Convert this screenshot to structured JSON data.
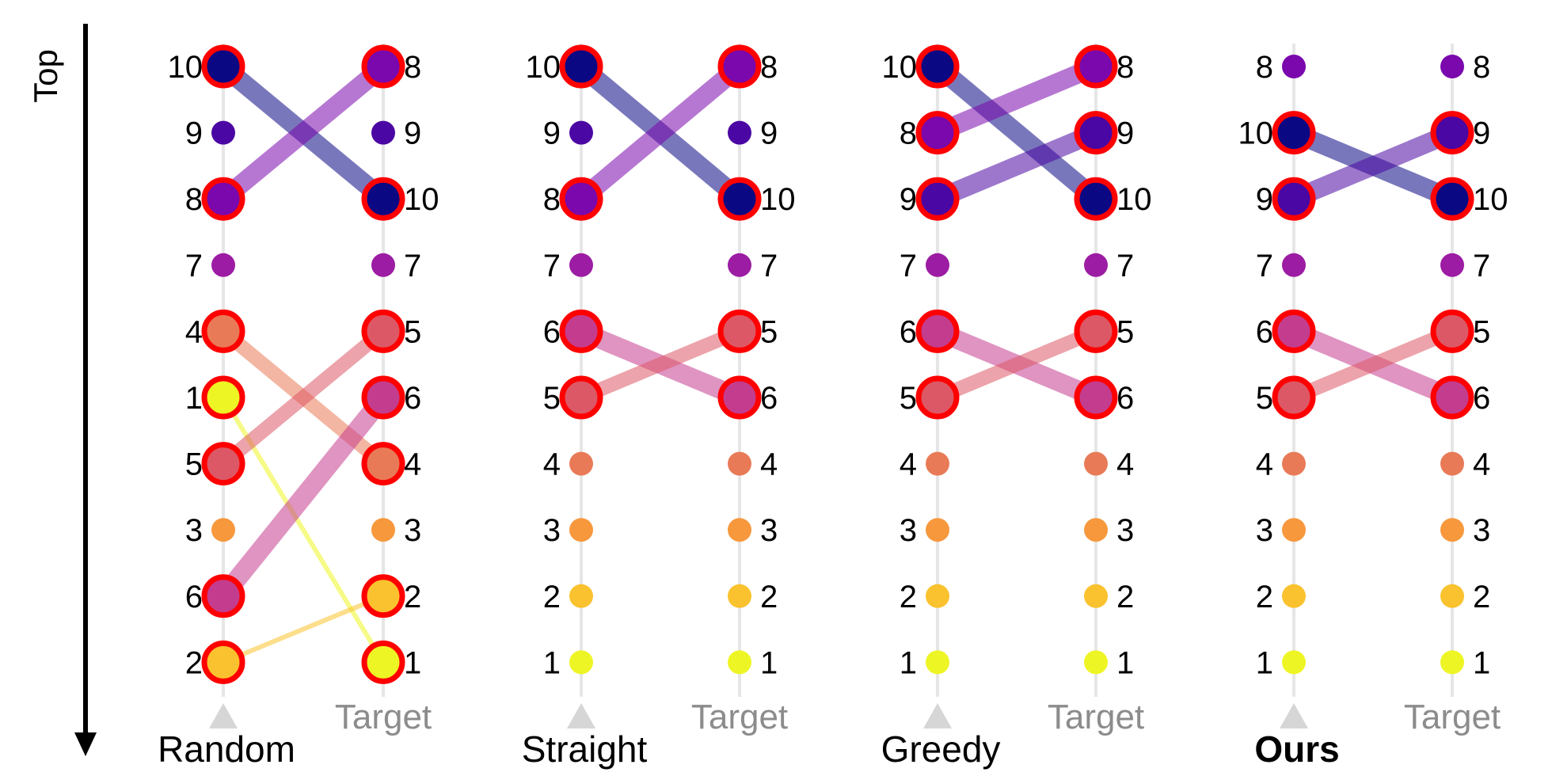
{
  "axis": {
    "label": "Top"
  },
  "target_label": "Target",
  "palette": {
    "1": "#f0f921",
    "2": "#fdc328",
    "3": "#f89441",
    "4": "#e56b5d",
    "5": "#cb4778",
    "6": "#a72197",
    "7": "#a72197",
    "8": "#7e03a8",
    "9": "#4c02a1",
    "10": "#0d0887"
  },
  "palette_display": {
    "1": "#eef524",
    "2": "#fac22e",
    "3": "#f7983d",
    "4": "#e97a57",
    "5": "#dd5866",
    "6": "#c43c8e",
    "7": "#9c1ca3",
    "8": "#7a08ad",
    "9": "#4b07a3",
    "10": "#0b0884"
  },
  "highlight_color": "#ff0000",
  "panels": [
    {
      "name": "Random",
      "bold": false,
      "left": [
        10,
        9,
        8,
        7,
        4,
        1,
        5,
        3,
        6,
        2
      ],
      "right": [
        8,
        9,
        10,
        7,
        5,
        6,
        4,
        3,
        2,
        1
      ],
      "highlighted": [
        10,
        8,
        4,
        1,
        5,
        6,
        2
      ]
    },
    {
      "name": "Straight",
      "bold": false,
      "left": [
        10,
        9,
        8,
        7,
        6,
        5,
        4,
        3,
        2,
        1
      ],
      "right": [
        8,
        9,
        10,
        7,
        5,
        6,
        4,
        3,
        2,
        1
      ],
      "highlighted": [
        10,
        8,
        6,
        5
      ]
    },
    {
      "name": "Greedy",
      "bold": false,
      "left": [
        10,
        8,
        9,
        7,
        6,
        5,
        4,
        3,
        2,
        1
      ],
      "right": [
        8,
        9,
        10,
        7,
        5,
        6,
        4,
        3,
        2,
        1
      ],
      "highlighted": [
        10,
        8,
        9,
        6,
        5
      ]
    },
    {
      "name": "Ours",
      "bold": true,
      "left": [
        8,
        10,
        9,
        7,
        6,
        5,
        4,
        3,
        2,
        1
      ],
      "right": [
        8,
        9,
        10,
        7,
        5,
        6,
        4,
        3,
        2,
        1
      ],
      "highlighted": [
        10,
        9,
        6,
        5
      ]
    }
  ]
}
